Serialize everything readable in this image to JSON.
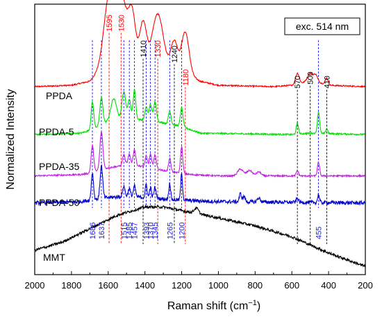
{
  "chart_data": {
    "type": "line",
    "xlabel": "Raman shift (cm",
    "xlabel_sup": "−1",
    "xlabel_close": ")",
    "ylabel": "Normalized Intensity",
    "xlim": [
      2000,
      200
    ],
    "x_ticks": [
      2000,
      1800,
      1600,
      1400,
      1200,
      1000,
      800,
      600,
      400,
      200
    ],
    "y_ticks": false,
    "grid": false,
    "legend_box": "exc. 514 nm",
    "series": [
      {
        "name": "PPDA",
        "color": "#ff0000",
        "base": 0.695,
        "noise": 0.0025,
        "background": [
          [
            2000,
            0
          ],
          [
            1800,
            0.005
          ],
          [
            1700,
            0.02
          ],
          [
            1650,
            0.06
          ],
          [
            1600,
            0.1
          ],
          [
            1500,
            0.11
          ],
          [
            1400,
            0.1
          ],
          [
            1300,
            0.085
          ],
          [
            1200,
            0.06
          ],
          [
            1100,
            0.02
          ],
          [
            1000,
            0.005
          ],
          [
            700,
            0
          ],
          [
            600,
            0.005
          ],
          [
            500,
            0.02
          ],
          [
            450,
            0.015
          ],
          [
            400,
            0.005
          ],
          [
            200,
            0
          ]
        ],
        "peaks": [
          [
            1595,
            0.23,
            28
          ],
          [
            1530,
            0.23,
            30
          ],
          [
            1470,
            0.16,
            18
          ],
          [
            1410,
            0.14,
            18
          ],
          [
            1330,
            0.18,
            28
          ],
          [
            1240,
            0.1,
            18
          ],
          [
            1180,
            0.15,
            20
          ],
          [
            570,
            0.04,
            10
          ],
          [
            500,
            0.03,
            15
          ],
          [
            470,
            0.025,
            10
          ],
          [
            410,
            0.025,
            8
          ]
        ]
      },
      {
        "name": "PPDA-5",
        "color": "#00e000",
        "base": 0.518,
        "noise": 0.003,
        "background": [
          [
            2000,
            0
          ],
          [
            1750,
            0.005
          ],
          [
            1700,
            0.015
          ],
          [
            1600,
            0.05
          ],
          [
            1500,
            0.06
          ],
          [
            1350,
            0.05
          ],
          [
            1200,
            0.03
          ],
          [
            1100,
            0.005
          ],
          [
            600,
            0
          ],
          [
            500,
            0.005
          ],
          [
            200,
            0
          ]
        ],
        "peaks": [
          [
            1686,
            0.1,
            7
          ],
          [
            1637,
            0.1,
            8
          ],
          [
            1570,
            0.08,
            15
          ],
          [
            1515,
            0.1,
            10
          ],
          [
            1485,
            0.07,
            8
          ],
          [
            1457,
            0.11,
            7
          ],
          [
            1393,
            0.05,
            7
          ],
          [
            1370,
            0.06,
            7
          ],
          [
            1345,
            0.07,
            8
          ],
          [
            1265,
            0.05,
            7
          ],
          [
            1200,
            0.07,
            7
          ],
          [
            570,
            0.04,
            6
          ],
          [
            455,
            0.08,
            6
          ],
          [
            410,
            0.02,
            5
          ]
        ]
      },
      {
        "name": "PPDA-35",
        "color": "#c020e0",
        "base": 0.365,
        "noise": 0.003,
        "background": [
          [
            2000,
            0
          ],
          [
            1750,
            0.005
          ],
          [
            1700,
            0.01
          ],
          [
            1600,
            0.03
          ],
          [
            1500,
            0.04
          ],
          [
            1400,
            0.035
          ],
          [
            1300,
            0.02
          ],
          [
            1150,
            0.005
          ],
          [
            1000,
            0
          ],
          [
            200,
            0
          ]
        ],
        "peaks": [
          [
            1686,
            0.1,
            7
          ],
          [
            1637,
            0.14,
            8
          ],
          [
            1515,
            0.04,
            7
          ],
          [
            1485,
            0.04,
            7
          ],
          [
            1457,
            0.06,
            7
          ],
          [
            1393,
            0.04,
            6
          ],
          [
            1370,
            0.05,
            6
          ],
          [
            1345,
            0.05,
            7
          ],
          [
            1265,
            0.05,
            6
          ],
          [
            1200,
            0.1,
            6
          ],
          [
            880,
            0.025,
            15
          ],
          [
            830,
            0.02,
            15
          ],
          [
            780,
            0.015,
            12
          ],
          [
            570,
            0.02,
            6
          ],
          [
            455,
            0.05,
            6
          ]
        ]
      },
      {
        "name": "PPDA-50",
        "color": "#0000cc",
        "base": 0.265,
        "noise": 0.007,
        "background": [
          [
            2000,
            0
          ],
          [
            1750,
            0.005
          ],
          [
            1700,
            0.01
          ],
          [
            1600,
            0.02
          ],
          [
            1500,
            0.025
          ],
          [
            1400,
            0.02
          ],
          [
            1300,
            0.015
          ],
          [
            1200,
            0.01
          ],
          [
            1000,
            0.005
          ],
          [
            200,
            0
          ]
        ],
        "peaks": [
          [
            1686,
            0.1,
            6
          ],
          [
            1637,
            0.12,
            7
          ],
          [
            1515,
            0.04,
            6
          ],
          [
            1485,
            0.03,
            6
          ],
          [
            1457,
            0.04,
            6
          ],
          [
            1393,
            0.05,
            5
          ],
          [
            1370,
            0.04,
            5
          ],
          [
            1345,
            0.04,
            6
          ],
          [
            1265,
            0.06,
            5
          ],
          [
            1200,
            0.1,
            5
          ],
          [
            880,
            0.03,
            6
          ],
          [
            860,
            0.02,
            6
          ],
          [
            780,
            0.015,
            8
          ],
          [
            570,
            0.015,
            6
          ],
          [
            455,
            0.03,
            5
          ]
        ]
      },
      {
        "name": "MMT",
        "color": "#000000",
        "base": 0.03,
        "noise": 0.005,
        "background": [
          [
            2000,
            0.06
          ],
          [
            1850,
            0.09
          ],
          [
            1700,
            0.14
          ],
          [
            1550,
            0.19
          ],
          [
            1400,
            0.22
          ],
          [
            1300,
            0.22
          ],
          [
            1150,
            0.2
          ],
          [
            1000,
            0.18
          ],
          [
            800,
            0.15
          ],
          [
            600,
            0.11
          ],
          [
            400,
            0.05
          ],
          [
            300,
            0.025
          ],
          [
            200,
            0.0
          ]
        ],
        "peaks": [
          [
            1120,
            0.02,
            12
          ]
        ]
      }
    ],
    "annotations_top": [
      {
        "x": 1595,
        "label": "1595",
        "color": "#ff0000",
        "y_top": 0.955
      },
      {
        "x": 1530,
        "label": "1530",
        "color": "#ff0000",
        "y_top": 0.955
      },
      {
        "x": 1410,
        "label": "1410",
        "color": "#000000",
        "y_top": 0.86
      },
      {
        "x": 1330,
        "label": "1330",
        "color": "#ff0000",
        "y_top": 0.86
      },
      {
        "x": 1240,
        "label": "1240",
        "color": "#000000",
        "y_top": 0.84
      },
      {
        "x": 1180,
        "label": "1180",
        "color": "#ff0000",
        "y_top": 0.755
      },
      {
        "x": 570,
        "label": "570",
        "color": "#000000",
        "y_top": 0.745
      },
      {
        "x": 500,
        "label": "500",
        "color": "#000000",
        "y_top": 0.76
      },
      {
        "x": 410,
        "label": "410",
        "color": "#000000",
        "y_top": 0.745
      }
    ],
    "annotations_bottom": [
      {
        "x": 1686,
        "label": "1686",
        "color": "#1a1aff"
      },
      {
        "x": 1637,
        "label": "1637",
        "color": "#1a1aff"
      },
      {
        "x": 1515,
        "label": "1515",
        "color": "#1a1aff"
      },
      {
        "x": 1485,
        "label": "1485",
        "color": "#1a1aff"
      },
      {
        "x": 1457,
        "label": "1457",
        "color": "#1a1aff"
      },
      {
        "x": 1393,
        "label": "1393",
        "color": "#1a1aff"
      },
      {
        "x": 1370,
        "label": "1370",
        "color": "#1a1aff"
      },
      {
        "x": 1345,
        "label": "1345",
        "color": "#1a1aff"
      },
      {
        "x": 1265,
        "label": "1265",
        "color": "#1a1aff"
      },
      {
        "x": 1200,
        "label": "1200",
        "color": "#1a1aff"
      },
      {
        "x": 455,
        "label": "455",
        "color": "#1a1aff"
      }
    ]
  }
}
